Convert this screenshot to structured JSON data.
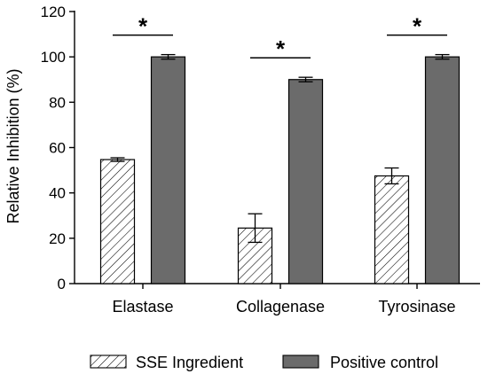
{
  "chart_data": {
    "type": "bar",
    "categories": [
      "Elastase",
      "Collagenase",
      "Tyrosinase"
    ],
    "series": [
      {
        "name": "SSE Ingredient",
        "values": [
          54.7,
          24.5,
          47.5
        ],
        "errors": [
          0.8,
          6.3,
          3.5
        ],
        "pattern": "diagonal-hatch",
        "fill": "#ffffff"
      },
      {
        "name": "Positive control",
        "values": [
          100,
          90,
          100
        ],
        "errors": [
          1.0,
          1.0,
          1.0
        ],
        "pattern": "solid",
        "fill": "#6b6b6b"
      }
    ],
    "significance": [
      {
        "category": "Elastase",
        "label": "*"
      },
      {
        "category": "Collagenase",
        "label": "*"
      },
      {
        "category": "Tyrosinase",
        "label": "*"
      }
    ],
    "ylabel": "Relative Inhibition (%)",
    "xlabel": "",
    "ylim": [
      0,
      120
    ],
    "yticks": [
      0,
      20,
      40,
      60,
      80,
      100,
      120
    ],
    "grid": false,
    "legend_position": "bottom"
  }
}
